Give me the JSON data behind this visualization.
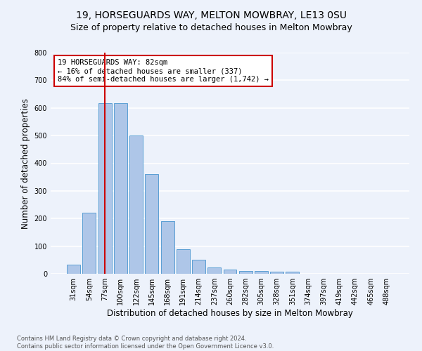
{
  "title1": "19, HORSEGUARDS WAY, MELTON MOWBRAY, LE13 0SU",
  "title2": "Size of property relative to detached houses in Melton Mowbray",
  "xlabel": "Distribution of detached houses by size in Melton Mowbray",
  "ylabel": "Number of detached properties",
  "categories": [
    "31sqm",
    "54sqm",
    "77sqm",
    "100sqm",
    "122sqm",
    "145sqm",
    "168sqm",
    "191sqm",
    "214sqm",
    "237sqm",
    "260sqm",
    "282sqm",
    "305sqm",
    "328sqm",
    "351sqm",
    "374sqm",
    "397sqm",
    "419sqm",
    "442sqm",
    "465sqm",
    "488sqm"
  ],
  "values": [
    32,
    222,
    617,
    617,
    500,
    360,
    190,
    88,
    50,
    23,
    15,
    10,
    10,
    8,
    8,
    0,
    0,
    0,
    0,
    0,
    0
  ],
  "bar_color": "#aec6e8",
  "bar_edge_color": "#5a9fd4",
  "vline_x": 2,
  "vline_color": "#cc0000",
  "annotation_text": "19 HORSEGUARDS WAY: 82sqm\n← 16% of detached houses are smaller (337)\n84% of semi-detached houses are larger (1,742) →",
  "annotation_box_color": "white",
  "annotation_edge_color": "#cc0000",
  "ylim": [
    0,
    800
  ],
  "yticks": [
    0,
    100,
    200,
    300,
    400,
    500,
    600,
    700,
    800
  ],
  "footer_text": "Contains HM Land Registry data © Crown copyright and database right 2024.\nContains public sector information licensed under the Open Government Licence v3.0.",
  "bg_color": "#edf2fb",
  "grid_color": "white",
  "title1_fontsize": 10,
  "title2_fontsize": 9,
  "xlabel_fontsize": 8.5,
  "ylabel_fontsize": 8.5,
  "annotation_fontsize": 7.5,
  "footer_fontsize": 6,
  "tick_fontsize": 7
}
